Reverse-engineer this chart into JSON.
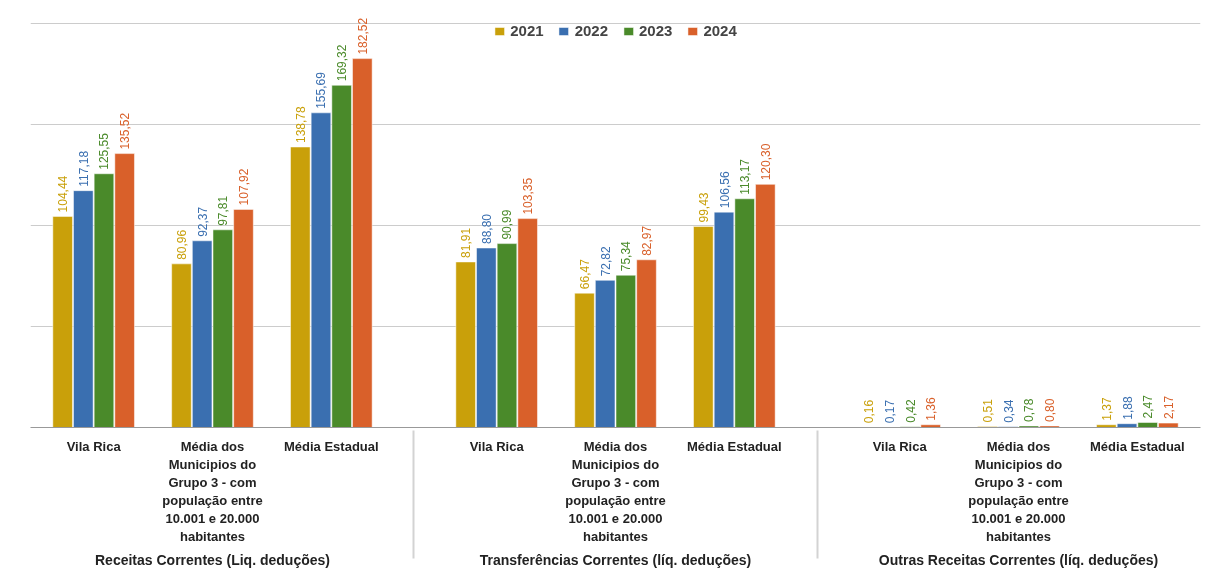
{
  "chart_data": {
    "type": "bar",
    "categories": [
      "Vila Rica",
      "Média dos Municipios do Grupo 3 - com população entre 10.001 e 20.000 habitantes",
      "Média Estadual",
      "Vila Rica",
      "Média dos Municipios do Grupo 3 - com população entre 10.001 e 20.000 habitantes",
      "Média Estadual",
      "Vila Rica",
      "Média dos Municipios do Grupo 3 - com população entre 10.001 e 20.000 habitantes",
      "Média Estadual"
    ],
    "series": [
      {
        "name": "2021",
        "color": "#c9a00a",
        "values": [
          104.44,
          80.96,
          138.78,
          81.91,
          66.47,
          99.43,
          0.16,
          0.51,
          1.37
        ],
        "value_labels": [
          "104,44",
          "80,96",
          "138,78",
          "81,91",
          "66,47",
          "99,43",
          "0,16",
          "0,51",
          "1,37"
        ]
      },
      {
        "name": "2022",
        "color": "#3a6fb0",
        "values": [
          117.18,
          92.37,
          155.69,
          88.8,
          72.82,
          106.56,
          0.17,
          0.34,
          1.88
        ],
        "value_labels": [
          "117,18",
          "92,37",
          "155,69",
          "88,80",
          "72,82",
          "106,56",
          "0,17",
          "0,34",
          "1,88"
        ]
      },
      {
        "name": "2023",
        "color": "#4a8a2a",
        "values": [
          125.55,
          97.81,
          169.32,
          90.99,
          75.34,
          113.17,
          0.42,
          0.78,
          2.47
        ],
        "value_labels": [
          "125,55",
          "97,81",
          "169,32",
          "90,99",
          "75,34",
          "113,17",
          "0,42",
          "0,78",
          "2,47"
        ]
      },
      {
        "name": "2024",
        "color": "#d9602a",
        "values": [
          135.52,
          107.92,
          182.52,
          103.35,
          82.97,
          120.3,
          1.36,
          0.8,
          2.17
        ],
        "value_labels": [
          "135,52",
          "107,92",
          "182,52",
          "103,35",
          "82,97",
          "120,30",
          "1,36",
          "0,80",
          "2,17"
        ]
      }
    ],
    "annotations": [
      "Receitas Correntes (Liq. deduções)",
      "Transferências Correntes (líq. deduções)",
      "Outras Receitas Correntes (líq. deduções)"
    ],
    "grid": "y",
    "legend": "top",
    "tick_labels": "x"
  }
}
